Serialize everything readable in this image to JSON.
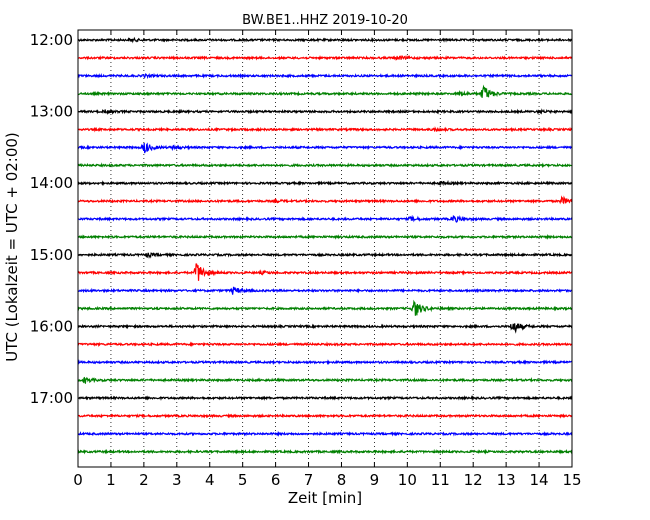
{
  "chart_data": {
    "type": "line",
    "title": "BW.BE1..HHZ 2019-10-20",
    "xlabel": "Zeit  [min]",
    "ylabel": "UTC (Lokalzeit = UTC + 02:00)",
    "xlim": [
      0,
      15
    ],
    "x_ticks": [
      0,
      1,
      2,
      3,
      4,
      5,
      6,
      7,
      8,
      9,
      10,
      11,
      12,
      13,
      14,
      15
    ],
    "x_tick_labels": [
      "0",
      "1",
      "2",
      "3",
      "4",
      "5",
      "6",
      "7",
      "8",
      "9",
      "10",
      "11",
      "12",
      "13",
      "14",
      "15"
    ],
    "y_ticks": [
      "12:00",
      "13:00",
      "14:00",
      "15:00",
      "16:00",
      "17:00"
    ],
    "grid": "vertical dotted",
    "color_cycle": [
      "#000000",
      "#ff0000",
      "#0000ff",
      "#008000"
    ],
    "rows_per_hour": 4,
    "row_minutes": 15,
    "traces": [
      {
        "start": "12:00",
        "color": "#000000",
        "events": [
          {
            "t": 1.6,
            "amp": 0.15
          }
        ]
      },
      {
        "start": "12:15",
        "color": "#ff0000",
        "events": [
          {
            "t": 9.7,
            "amp": 0.2
          }
        ]
      },
      {
        "start": "12:30",
        "color": "#0000ff",
        "events": [
          {
            "t": 2.0,
            "amp": 0.12
          }
        ]
      },
      {
        "start": "12:45",
        "color": "#008000",
        "events": [
          {
            "t": 11.6,
            "amp": 0.18
          },
          {
            "t": 12.3,
            "amp": 0.9
          }
        ]
      },
      {
        "start": "13:00",
        "color": "#000000",
        "events": [
          {
            "t": 0.8,
            "amp": 0.15
          },
          {
            "t": 14.0,
            "amp": 0.1
          }
        ]
      },
      {
        "start": "13:15",
        "color": "#ff0000",
        "events": [
          {
            "t": 10.8,
            "amp": 0.15
          }
        ]
      },
      {
        "start": "13:30",
        "color": "#0000ff",
        "events": [
          {
            "t": 2.0,
            "amp": 0.6
          },
          {
            "t": 2.9,
            "amp": 0.15
          }
        ]
      },
      {
        "start": "13:45",
        "color": "#008000",
        "events": []
      },
      {
        "start": "14:00",
        "color": "#000000",
        "events": [
          {
            "t": 11.0,
            "amp": 0.12
          }
        ]
      },
      {
        "start": "14:15",
        "color": "#ff0000",
        "events": [
          {
            "t": 6.0,
            "amp": 0.1
          },
          {
            "t": 14.7,
            "amp": 0.35
          }
        ]
      },
      {
        "start": "14:30",
        "color": "#0000ff",
        "events": [
          {
            "t": 10.1,
            "amp": 0.2
          },
          {
            "t": 11.4,
            "amp": 0.35
          }
        ]
      },
      {
        "start": "14:45",
        "color": "#008000",
        "events": []
      },
      {
        "start": "15:00",
        "color": "#000000",
        "events": [
          {
            "t": 2.1,
            "amp": 0.18
          }
        ]
      },
      {
        "start": "15:15",
        "color": "#ff0000",
        "events": [
          {
            "t": 3.6,
            "amp": 1.2
          },
          {
            "t": 5.6,
            "amp": 0.12
          }
        ]
      },
      {
        "start": "15:30",
        "color": "#0000ff",
        "events": [
          {
            "t": 4.7,
            "amp": 0.35
          }
        ]
      },
      {
        "start": "15:45",
        "color": "#008000",
        "events": [
          {
            "t": 10.2,
            "amp": 1.0
          }
        ]
      },
      {
        "start": "16:00",
        "color": "#000000",
        "events": [
          {
            "t": 13.2,
            "amp": 0.7
          }
        ]
      },
      {
        "start": "16:15",
        "color": "#ff0000",
        "events": []
      },
      {
        "start": "16:30",
        "color": "#0000ff",
        "events": []
      },
      {
        "start": "16:45",
        "color": "#008000",
        "events": [
          {
            "t": 0.2,
            "amp": 0.25
          }
        ]
      },
      {
        "start": "17:00",
        "color": "#000000",
        "events": []
      },
      {
        "start": "17:15",
        "color": "#ff0000",
        "events": []
      },
      {
        "start": "17:30",
        "color": "#0000ff",
        "events": []
      },
      {
        "start": "17:45",
        "color": "#008000",
        "events": []
      }
    ]
  }
}
